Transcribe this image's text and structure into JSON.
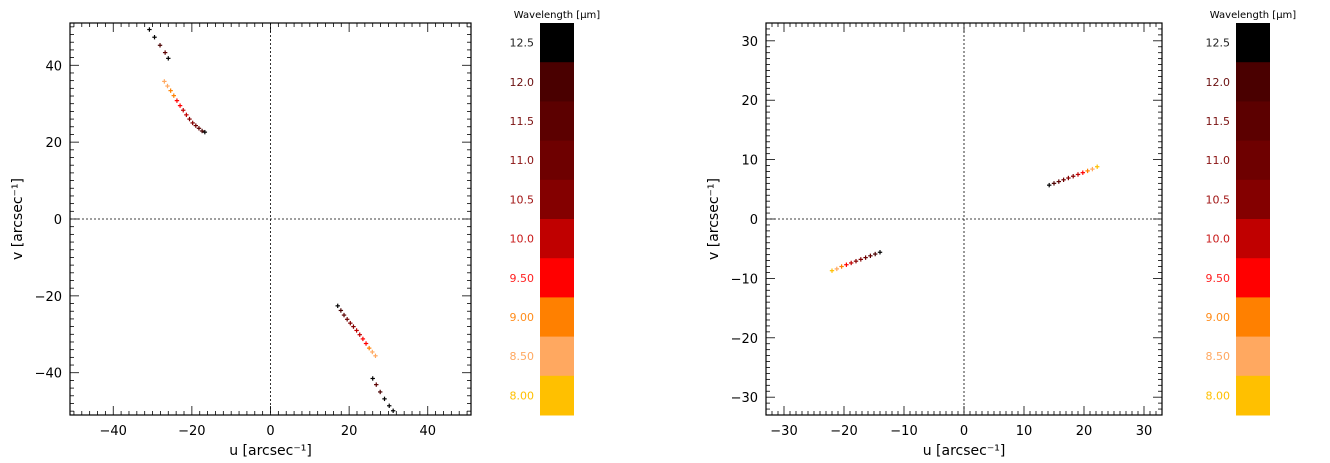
{
  "chart_data": [
    {
      "type": "scatter",
      "xlabel": "u [arcsec⁻¹]",
      "ylabel": "v [arcsec⁻¹]",
      "xlim": [
        -51,
        51
      ],
      "ylim": [
        -51,
        51
      ],
      "xticks": [
        -40,
        -20,
        0,
        20,
        40
      ],
      "yticks": [
        -40,
        -20,
        0,
        20,
        40
      ],
      "xtick_labels": [
        "−40",
        "−20",
        "0",
        "20",
        "40"
      ],
      "ytick_labels": [
        "−40",
        "−20",
        "0",
        "20",
        "40"
      ],
      "points": [
        {
          "x": -30.8,
          "y": 49.3,
          "band": 0
        },
        {
          "x": -29.5,
          "y": 47.3,
          "band": 0
        },
        {
          "x": -28.1,
          "y": 45.2,
          "band": 1
        },
        {
          "x": -26.8,
          "y": 43.3,
          "band": 2
        },
        {
          "x": -26.0,
          "y": 41.8,
          "band": 0
        },
        {
          "x": -27.0,
          "y": 35.8,
          "band": 8
        },
        {
          "x": -26.2,
          "y": 34.6,
          "band": 8
        },
        {
          "x": -25.4,
          "y": 33.4,
          "band": 7
        },
        {
          "x": -24.6,
          "y": 32.1,
          "band": 7
        },
        {
          "x": -23.8,
          "y": 30.8,
          "band": 6
        },
        {
          "x": -23.0,
          "y": 29.5,
          "band": 6
        },
        {
          "x": -22.2,
          "y": 28.3,
          "band": 5
        },
        {
          "x": -21.4,
          "y": 27.1,
          "band": 5
        },
        {
          "x": -20.6,
          "y": 26.0,
          "band": 4
        },
        {
          "x": -19.8,
          "y": 25.0,
          "band": 4
        },
        {
          "x": -19.0,
          "y": 24.3,
          "band": 3
        },
        {
          "x": -18.2,
          "y": 23.6,
          "band": 2
        },
        {
          "x": -17.4,
          "y": 22.9,
          "band": 1
        },
        {
          "x": -16.7,
          "y": 22.6,
          "band": 0
        },
        {
          "x": 17.1,
          "y": -22.6,
          "band": 0
        },
        {
          "x": 17.9,
          "y": -23.8,
          "band": 1
        },
        {
          "x": 18.7,
          "y": -25.0,
          "band": 2
        },
        {
          "x": 19.5,
          "y": -26.1,
          "band": 3
        },
        {
          "x": 20.3,
          "y": -27.1,
          "band": 4
        },
        {
          "x": 21.1,
          "y": -28.0,
          "band": 4
        },
        {
          "x": 21.9,
          "y": -29.0,
          "band": 5
        },
        {
          "x": 22.7,
          "y": -30.1,
          "band": 5
        },
        {
          "x": 23.5,
          "y": -31.2,
          "band": 6
        },
        {
          "x": 24.3,
          "y": -32.4,
          "band": 6
        },
        {
          "x": 25.1,
          "y": -33.6,
          "band": 7
        },
        {
          "x": 25.9,
          "y": -34.6,
          "band": 8
        },
        {
          "x": 26.7,
          "y": -35.6,
          "band": 8
        },
        {
          "x": 26.0,
          "y": -41.5,
          "band": 0
        },
        {
          "x": 26.9,
          "y": -43.1,
          "band": 2
        },
        {
          "x": 27.9,
          "y": -45.0,
          "band": 1
        },
        {
          "x": 29.0,
          "y": -46.8,
          "band": 0
        },
        {
          "x": 30.2,
          "y": -48.6,
          "band": 0
        },
        {
          "x": 31.2,
          "y": -49.9,
          "band": 0
        }
      ]
    },
    {
      "type": "scatter",
      "xlabel": "u [arcsec⁻¹]",
      "ylabel": "v [arcsec⁻¹]",
      "xlim": [
        -33,
        33
      ],
      "ylim": [
        -33,
        33
      ],
      "xticks": [
        -30,
        -20,
        -10,
        0,
        10,
        20,
        30
      ],
      "yticks": [
        -30,
        -20,
        -10,
        0,
        10,
        20,
        30
      ],
      "xtick_labels": [
        "−30",
        "−20",
        "−10",
        "0",
        "10",
        "20",
        "30"
      ],
      "ytick_labels": [
        "−30",
        "−20",
        "−10",
        "0",
        "10",
        "20",
        "30"
      ],
      "points": [
        {
          "x": 14.2,
          "y": 5.7,
          "band": 0
        },
        {
          "x": 15.0,
          "y": 6.0,
          "band": 1
        },
        {
          "x": 15.8,
          "y": 6.3,
          "band": 2
        },
        {
          "x": 16.6,
          "y": 6.6,
          "band": 3
        },
        {
          "x": 17.4,
          "y": 6.9,
          "band": 4
        },
        {
          "x": 18.2,
          "y": 7.2,
          "band": 4
        },
        {
          "x": 19.0,
          "y": 7.5,
          "band": 5
        },
        {
          "x": 19.8,
          "y": 7.8,
          "band": 6
        },
        {
          "x": 20.6,
          "y": 8.1,
          "band": 7
        },
        {
          "x": 21.4,
          "y": 8.4,
          "band": 8
        },
        {
          "x": 22.2,
          "y": 8.8,
          "band": 9
        },
        {
          "x": -14.0,
          "y": -5.6,
          "band": 0
        },
        {
          "x": -14.8,
          "y": -5.9,
          "band": 1
        },
        {
          "x": -15.6,
          "y": -6.2,
          "band": 2
        },
        {
          "x": -16.4,
          "y": -6.5,
          "band": 3
        },
        {
          "x": -17.2,
          "y": -6.8,
          "band": 4
        },
        {
          "x": -18.0,
          "y": -7.1,
          "band": 4
        },
        {
          "x": -18.8,
          "y": -7.4,
          "band": 5
        },
        {
          "x": -19.6,
          "y": -7.7,
          "band": 6
        },
        {
          "x": -20.4,
          "y": -8.0,
          "band": 7
        },
        {
          "x": -21.2,
          "y": -8.4,
          "band": 8
        },
        {
          "x": -22.0,
          "y": -8.7,
          "band": 9
        }
      ]
    }
  ],
  "colorbar": {
    "title": "Wavelength [μm]",
    "bands": [
      {
        "label": "12.5",
        "color": "#000000",
        "label_color": "#222222"
      },
      {
        "label": "12.0",
        "color": "#4a0000",
        "label_color": "#6b1010"
      },
      {
        "label": "11.5",
        "color": "#5c0000",
        "label_color": "#7a1010"
      },
      {
        "label": "11.0",
        "color": "#6e0000",
        "label_color": "#8a1212"
      },
      {
        "label": "10.5",
        "color": "#840000",
        "label_color": "#a01414"
      },
      {
        "label": "10.0",
        "color": "#c00000",
        "label_color": "#c81818"
      },
      {
        "label": "9.50",
        "color": "#ff0000",
        "label_color": "#ff2020"
      },
      {
        "label": "9.00",
        "color": "#ff8000",
        "label_color": "#ff8c1a"
      },
      {
        "label": "8.50",
        "color": "#ffa860",
        "label_color": "#ffa860"
      },
      {
        "label": "8.00",
        "color": "#ffc000",
        "label_color": "#ffc000"
      }
    ]
  }
}
